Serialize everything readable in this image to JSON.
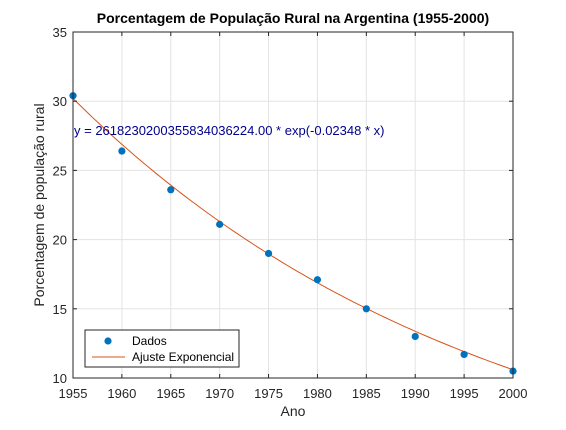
{
  "chart_data": {
    "type": "scatter",
    "title": "Porcentagem de População Rural na Argentina (1955-2000)",
    "xlabel": "Ano",
    "ylabel": "Porcentagem de população rural",
    "xlim": [
      1955,
      2000
    ],
    "ylim": [
      10,
      35
    ],
    "xticks": [
      1955,
      1960,
      1965,
      1970,
      1975,
      1980,
      1985,
      1990,
      1995,
      2000
    ],
    "yticks": [
      10,
      15,
      20,
      25,
      30,
      35
    ],
    "grid": true,
    "legend_position": "bottom-left",
    "series": [
      {
        "name": "Dados",
        "kind": "markers",
        "color": "#0072BD",
        "x": [
          1955,
          1960,
          1965,
          1970,
          1975,
          1980,
          1985,
          1990,
          1995,
          2000
        ],
        "y": [
          30.4,
          26.4,
          23.6,
          21.1,
          19.0,
          17.1,
          15.0,
          13.0,
          11.7,
          10.5
        ]
      },
      {
        "name": "Ajuste Exponencial",
        "kind": "line",
        "color": "#D95319",
        "x": [
          1955,
          1960,
          1965,
          1970,
          1975,
          1980,
          1985,
          1990,
          1995,
          2000
        ],
        "y": [
          30.2,
          26.9,
          24.0,
          21.3,
          19.0,
          16.9,
          15.1,
          13.4,
          11.9,
          10.6
        ]
      }
    ],
    "annotation": {
      "text": "y = 261823020035583403622​4.00 * exp(-0.02348 * x)",
      "color": "#00008B"
    }
  }
}
